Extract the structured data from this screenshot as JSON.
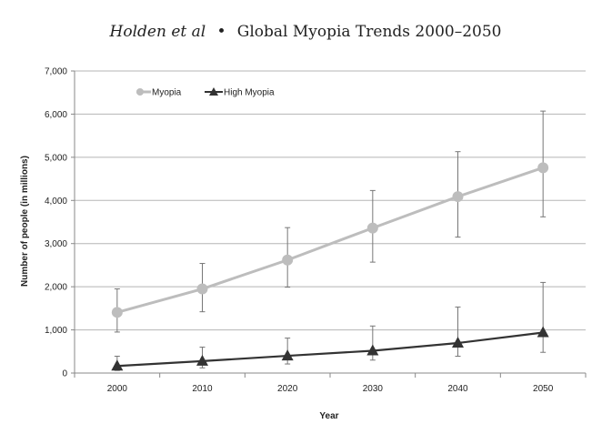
{
  "chart_data": {
    "type": "line",
    "title_author": "Holden et al",
    "title_separator": "•",
    "title_rest": "Global Myopia Trends 2000–2050",
    "xlabel": "Year",
    "ylabel": "Number of people (in millions)",
    "x": [
      2000,
      2010,
      2020,
      2030,
      2040,
      2050
    ],
    "x_tick_labels": [
      "2000",
      "2010",
      "2020",
      "2030",
      "2040",
      "2050"
    ],
    "ylim": [
      0,
      7000
    ],
    "y_ticks": [
      0,
      1000,
      2000,
      3000,
      4000,
      5000,
      6000,
      7000
    ],
    "y_tick_labels": [
      "0",
      "1,000",
      "2,000",
      "3,000",
      "4,000",
      "5,000",
      "6,000",
      "7,000"
    ],
    "grid": "horizontal",
    "legend_position": "top-left",
    "series": [
      {
        "name": "Myopia",
        "marker": "circle",
        "color": "#bdbdbd",
        "values": [
          1406,
          1950,
          2620,
          3361,
          4089,
          4758
        ],
        "error_low": [
          950,
          1420,
          1990,
          2570,
          3150,
          3620
        ],
        "error_high": [
          1950,
          2540,
          3370,
          4230,
          5130,
          6070
        ]
      },
      {
        "name": "High Myopia",
        "marker": "triangle",
        "color": "#333333",
        "values": [
          163,
          277,
          399,
          517,
          696,
          938
        ],
        "error_low": [
          60,
          120,
          210,
          300,
          390,
          480
        ],
        "error_high": [
          390,
          600,
          810,
          1090,
          1530,
          2100
        ]
      }
    ]
  }
}
